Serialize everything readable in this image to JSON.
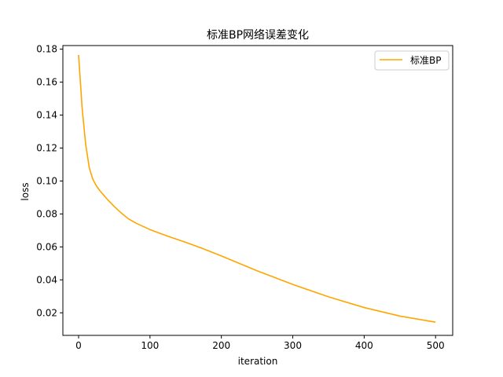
{
  "chart_data": {
    "type": "line",
    "title": "标准BP网络误差变化",
    "xlabel": "iteration",
    "ylabel": "loss",
    "xlim": [
      -22,
      524
    ],
    "ylim": [
      0.0063,
      0.1822
    ],
    "xticks": [
      0,
      100,
      200,
      300,
      400,
      500
    ],
    "yticks": [
      0.02,
      0.04,
      0.06,
      0.08,
      0.1,
      0.12,
      0.14,
      0.16,
      0.18
    ],
    "ytick_labels": [
      "0.02",
      "0.04",
      "0.06",
      "0.08",
      "0.10",
      "0.12",
      "0.14",
      "0.16",
      "0.18"
    ],
    "grid": false,
    "legend": "top-right",
    "series": [
      {
        "name": "标准BP",
        "color": "#ffa500",
        "x": [
          0,
          5,
          10,
          15,
          20,
          25,
          30,
          40,
          50,
          60,
          70,
          80,
          100,
          125,
          150,
          175,
          200,
          250,
          300,
          350,
          400,
          450,
          500
        ],
        "y": [
          0.1765,
          0.144,
          0.122,
          0.108,
          0.101,
          0.097,
          0.094,
          0.089,
          0.0845,
          0.0805,
          0.077,
          0.0745,
          0.0705,
          0.0665,
          0.0628,
          0.0588,
          0.0545,
          0.0455,
          0.0372,
          0.0297,
          0.0232,
          0.018,
          0.0143
        ]
      }
    ]
  }
}
